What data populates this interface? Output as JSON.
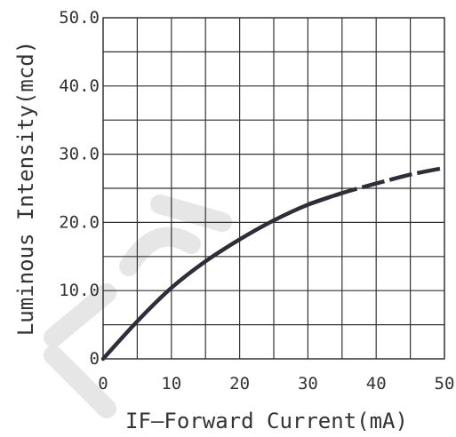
{
  "chart_data": {
    "type": "line",
    "xlabel": "IF—Forward Current(mA)",
    "ylabel": "Luminous Intensity(mcd)",
    "x_ticks": [
      "0",
      "10",
      "20",
      "30",
      "40",
      "50"
    ],
    "y_ticks": [
      "0",
      "10.0",
      "20.0",
      "30.0",
      "40.0",
      "50.0"
    ],
    "xlim": [
      0,
      50
    ],
    "ylim": [
      0,
      50
    ],
    "grid": true,
    "series": [
      {
        "x": [
          0,
          5,
          10,
          15,
          20,
          25,
          30,
          35,
          40,
          45,
          50
        ],
        "y": [
          0,
          5.5,
          10.4,
          14.3,
          17.5,
          20.3,
          22.6,
          24.3,
          25.7,
          27.0,
          28.0
        ],
        "solid_until_x": 33,
        "color": "#2e2e3a"
      }
    ]
  }
}
